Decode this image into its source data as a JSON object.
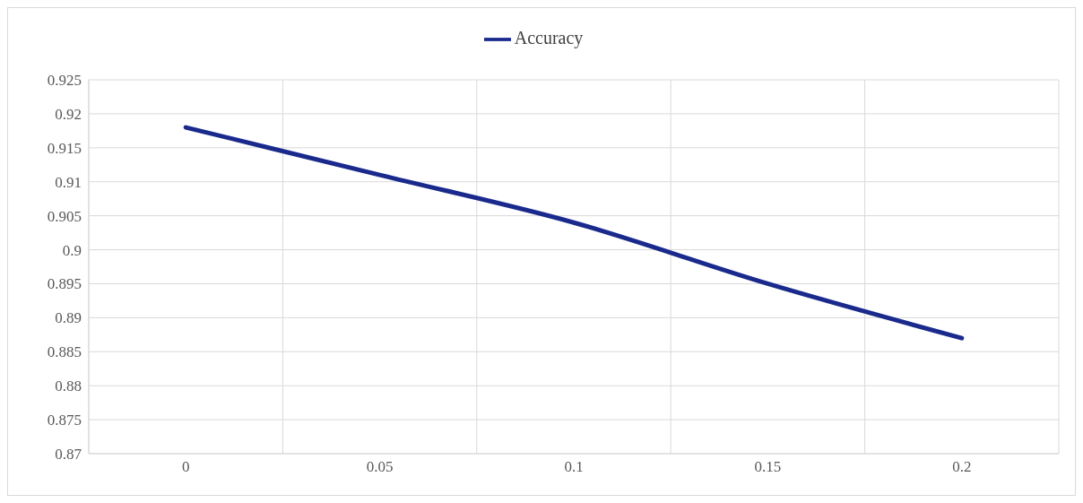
{
  "chart_data": {
    "type": "line",
    "categories": [
      "0",
      "0.05",
      "0.1",
      "0.15",
      "0.2"
    ],
    "series": [
      {
        "name": "Accuracy",
        "color": "#1a2a8c",
        "values": [
          0.918,
          0.911,
          0.904,
          0.895,
          0.887
        ]
      }
    ],
    "ylim": [
      0.87,
      0.925
    ],
    "yticks": [
      0.87,
      0.875,
      0.88,
      0.885,
      0.89,
      0.895,
      0.9,
      0.905,
      0.91,
      0.915,
      0.92,
      0.925
    ],
    "grid": true,
    "legend": "top",
    "marker": "none",
    "line_style": "solid"
  }
}
